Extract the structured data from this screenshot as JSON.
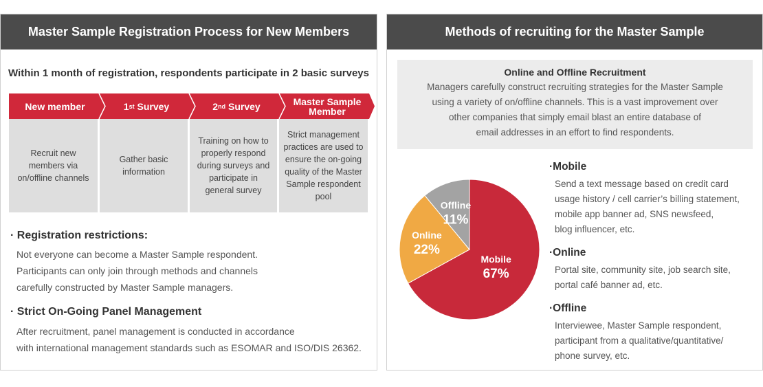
{
  "left": {
    "header": "Master Sample Registration Process for New Members",
    "subtitle": "Within 1 month of registration, respondents participate in 2 basic surveys",
    "steps": [
      {
        "label": "New member",
        "description": "Recruit new members via on/offline channels"
      },
      {
        "label_main": "1",
        "label_sup": "st",
        "label_rest": " Survey",
        "description": "Gather basic information"
      },
      {
        "label_main": "2",
        "label_sup": "nd",
        "label_rest": " Survey",
        "description": "Training on how to properly respond during surveys and participate in general survey"
      },
      {
        "label_line1": "Master Sample",
        "label_line2": "Member",
        "description": "Strict management practices are used to ensure the on-going quality of the Master Sample respondent pool"
      }
    ],
    "restrictions_title": "Registration restrictions:",
    "restrictions_body": [
      "Not everyone can become a Master Sample respondent.",
      "Participants can only join through methods and channels",
      "carefully constructed by Master Sample managers."
    ],
    "management_title": "Strict On-Going Panel Management",
    "management_body": [
      "After recruitment, panel management is conducted in accordance",
      "with international management standards such as ESOMAR and ISO/DIS 26362."
    ]
  },
  "right": {
    "header": "Methods of recruiting for the Master Sample",
    "recruit_title": "Online and Offline Recruitment",
    "recruit_text": [
      "Managers carefully construct recruiting strategies for the Master Sample",
      "using a variety of on/offline channels. This is a vast improvement over",
      "other companies that simply email blast an entire database of",
      "email addresses in an effort to find respondents."
    ],
    "methods": [
      {
        "title": "Mobile",
        "lines": [
          "Send a text message based on credit card",
          "usage history / cell carrier’s billing statement,",
          "mobile app banner ad, SNS newsfeed,",
          "blog influencer, etc."
        ]
      },
      {
        "title": "Online",
        "lines": [
          "Portal site, community site, job search site,",
          "portal café banner ad, etc."
        ]
      },
      {
        "title": "Offline",
        "lines": [
          "Interviewee, Master Sample respondent,",
          "participant from a qualitative/quantitative/",
          "phone survey, etc."
        ]
      }
    ]
  },
  "colors": {
    "header_bg": "#4b4b4b",
    "step_red": "#d0283a",
    "mobile": "#c8293a",
    "online": "#f0a944",
    "offline": "#a3a3a3"
  },
  "chart_data": {
    "type": "pie",
    "categories": [
      "Mobile",
      "Online",
      "Offline"
    ],
    "values": [
      67,
      22,
      11
    ],
    "labels": [
      "67%",
      "22%",
      "11%"
    ],
    "colors": [
      "#c8293a",
      "#f0a944",
      "#a3a3a3"
    ]
  }
}
